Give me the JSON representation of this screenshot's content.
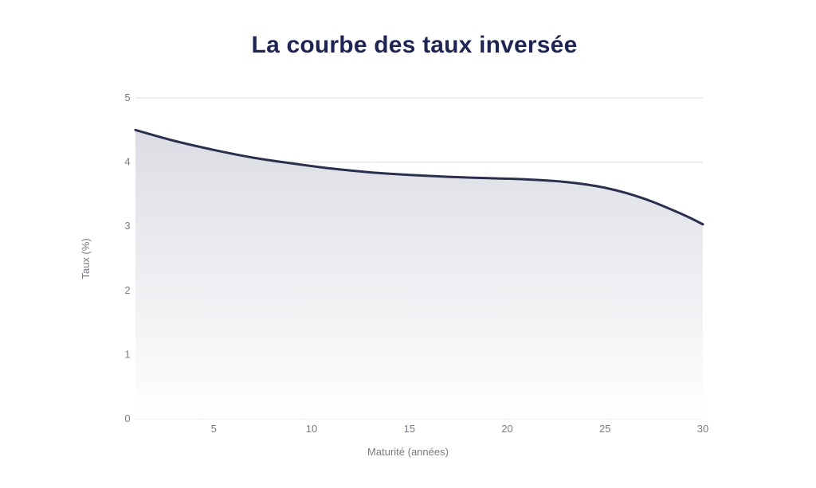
{
  "chart_data": {
    "type": "area",
    "title": "La courbe des taux inversée",
    "xlabel": "Maturité (années)",
    "ylabel": "Taux (%)",
    "xlim": [
      1,
      30
    ],
    "ylim": [
      0,
      5
    ],
    "x_ticks": [
      5,
      10,
      15,
      20,
      25,
      30
    ],
    "y_ticks": [
      0,
      1,
      2,
      3,
      4,
      5
    ],
    "grid": "horizontal",
    "colors": {
      "line": "#2b2f4e",
      "fill_top": "#dcdde4",
      "fill_bottom": "#ffffff",
      "grid": "#dddde2",
      "title": "#1f2552"
    },
    "series": [
      {
        "x": [
          1,
          3,
          5,
          7,
          9,
          11,
          13,
          15,
          17,
          19,
          21,
          23,
          25,
          27,
          29,
          30
        ],
        "y": [
          4.5,
          4.33,
          4.19,
          4.07,
          3.98,
          3.9,
          3.84,
          3.8,
          3.77,
          3.75,
          3.73,
          3.69,
          3.6,
          3.43,
          3.18,
          3.03
        ]
      }
    ]
  }
}
